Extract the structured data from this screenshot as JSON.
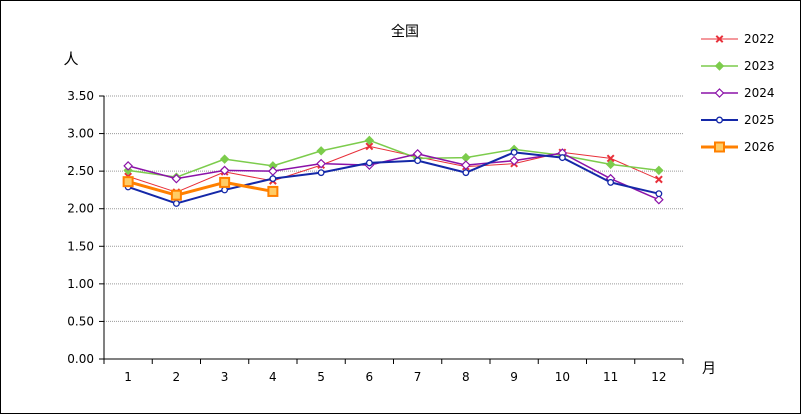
{
  "chart_data": {
    "type": "line",
    "title": "全国",
    "ylabel": "人",
    "xlabel": "月",
    "ylim": [
      0,
      3.5
    ],
    "y_ticks": [
      "0.00",
      "0.50",
      "1.00",
      "1.50",
      "2.00",
      "2.50",
      "3.00",
      "3.50"
    ],
    "categories": [
      "1",
      "2",
      "3",
      "4",
      "5",
      "6",
      "7",
      "8",
      "9",
      "10",
      "11",
      "12"
    ],
    "grid": true,
    "legend_position": "right",
    "series": [
      {
        "name": "2022",
        "color": "#e8303a",
        "marker": "x",
        "width": 1,
        "values": [
          2.43,
          2.22,
          2.49,
          2.37,
          2.58,
          2.83,
          2.69,
          2.56,
          2.6,
          2.75,
          2.67,
          2.39
        ]
      },
      {
        "name": "2023",
        "color": "#7ccc4c",
        "marker": "diamond",
        "width": 1.5,
        "values": [
          2.51,
          2.42,
          2.66,
          2.57,
          2.77,
          2.91,
          2.67,
          2.68,
          2.79,
          2.71,
          2.59,
          2.51
        ]
      },
      {
        "name": "2024",
        "color": "#8b12a8",
        "marker": "diamond-open",
        "width": 1.5,
        "values": [
          2.57,
          2.4,
          2.51,
          2.5,
          2.6,
          2.58,
          2.73,
          2.58,
          2.64,
          2.74,
          2.4,
          2.12
        ]
      },
      {
        "name": "2025",
        "color": "#1428a8",
        "marker": "circle-open",
        "width": 2,
        "values": [
          2.29,
          2.07,
          2.25,
          2.4,
          2.48,
          2.61,
          2.64,
          2.48,
          2.75,
          2.68,
          2.35,
          2.2
        ]
      },
      {
        "name": "2026",
        "color": "#ff8000",
        "marker": "square",
        "width": 3,
        "values": [
          2.36,
          2.18,
          2.35,
          2.23,
          null,
          null,
          null,
          null,
          null,
          null,
          null,
          null
        ]
      }
    ]
  }
}
